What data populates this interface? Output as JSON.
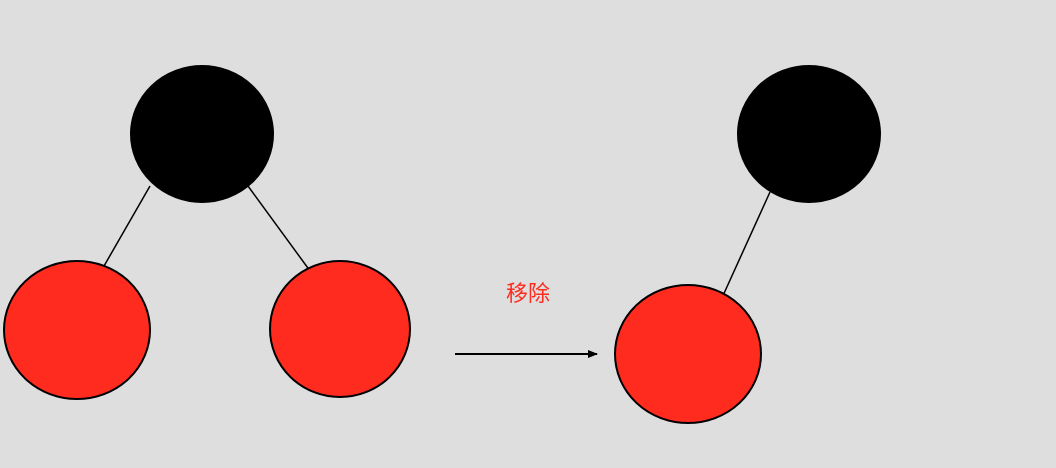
{
  "colors": {
    "background": "#dedede",
    "black_node": "#000000",
    "red_node": "#ff2b1f",
    "label": "#ff2b1f"
  },
  "before_tree": {
    "root": {
      "color": "black"
    },
    "children": [
      {
        "side": "left",
        "color": "red"
      },
      {
        "side": "right",
        "color": "red"
      }
    ]
  },
  "transition": {
    "label": "移除",
    "arrow_direction": "right"
  },
  "after_tree": {
    "root": {
      "color": "black"
    },
    "children": [
      {
        "side": "left",
        "color": "red"
      }
    ]
  }
}
